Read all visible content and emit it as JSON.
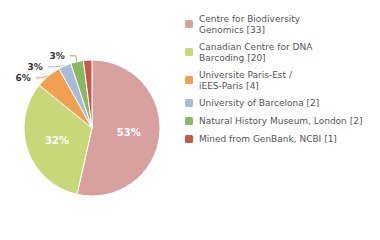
{
  "chart_data": {
    "type": "pie",
    "categories": [
      "Centre for Biodiversity\nGenomics [33]",
      "Canadian Centre for DNA\nBarcoding [20]",
      "Universite Paris-Est /\niEES-Paris [4]",
      "University of Barcelona [2]",
      "Natural History Museum, London [2]",
      "Mined from GenBank, NCBI [1]"
    ],
    "values": [
      53,
      32,
      6,
      3,
      3,
      2
    ],
    "value_labels": [
      "53%",
      "32%",
      "6%",
      "3%",
      "3%",
      null
    ],
    "colors": [
      "#d9a0a0",
      "#c8d878",
      "#f0a050",
      "#a8bcd8",
      "#88b860",
      "#c85848"
    ],
    "data_labels": true,
    "legend": "right"
  }
}
